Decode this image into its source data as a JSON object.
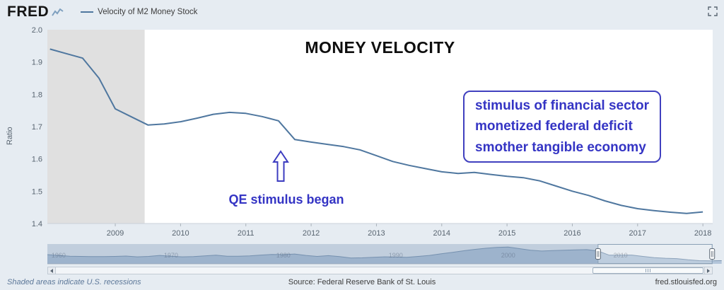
{
  "header": {
    "logo": "FRED",
    "series_legend": "Velocity of M2 Money Stock"
  },
  "chart_data": {
    "type": "line",
    "title": "MONEY VELOCITY",
    "ylabel": "Ratio",
    "series_name": "Velocity of M2 Money Stock",
    "x_start": 2008.0,
    "x_step": 0.25,
    "values": [
      1.94,
      1.926,
      1.912,
      1.85,
      1.755,
      1.73,
      1.705,
      1.708,
      1.715,
      1.726,
      1.738,
      1.744,
      1.741,
      1.731,
      1.718,
      1.66,
      1.652,
      1.645,
      1.638,
      1.628,
      1.61,
      1.592,
      1.58,
      1.57,
      1.56,
      1.555,
      1.558,
      1.552,
      1.546,
      1.542,
      1.532,
      1.516,
      1.5,
      1.487,
      1.47,
      1.456,
      1.446,
      1.44,
      1.435,
      1.431,
      1.436
    ],
    "xlim": [
      2007.96,
      2018.15
    ],
    "ylim": [
      1.4,
      2.0
    ],
    "y_ticks": [
      2.0,
      1.9,
      1.8,
      1.7,
      1.6,
      1.5,
      1.4
    ],
    "x_ticks": [
      2009,
      2010,
      2011,
      2012,
      2013,
      2014,
      2015,
      2016,
      2017,
      2018
    ],
    "line_color": "#4f779f",
    "recession_bands": [
      {
        "start": 2007.96,
        "end": 2009.45,
        "color": "#e0e0e0"
      }
    ],
    "grid": false,
    "legend_position": "header"
  },
  "annotations": {
    "box_lines": [
      "stimulus of financial sector",
      "monetized federal deficit",
      "smother tangible economy"
    ],
    "arrow_label": "QE stimulus began",
    "color": "#3434c4"
  },
  "navigator": {
    "x_start": 1959,
    "x_step": 1,
    "values": [
      1.74,
      1.7,
      1.66,
      1.65,
      1.64,
      1.64,
      1.65,
      1.67,
      1.63,
      1.65,
      1.7,
      1.66,
      1.63,
      1.64,
      1.68,
      1.71,
      1.66,
      1.66,
      1.68,
      1.72,
      1.75,
      1.74,
      1.77,
      1.7,
      1.65,
      1.69,
      1.64,
      1.57,
      1.58,
      1.61,
      1.63,
      1.62,
      1.61,
      1.65,
      1.7,
      1.78,
      1.85,
      1.93,
      2.0,
      2.06,
      2.1,
      2.12,
      2.04,
      1.96,
      1.92,
      1.94,
      1.96,
      1.98,
      1.99,
      1.92,
      1.71,
      1.72,
      1.72,
      1.65,
      1.59,
      1.56,
      1.54,
      1.48,
      1.44,
      1.43,
      1.44
    ],
    "xlim": [
      1959,
      2018.2
    ],
    "ylim": [
      1.35,
      2.2
    ],
    "decade_labels": [
      "1960",
      "1970",
      "1980",
      "1990",
      "2000",
      "2010"
    ],
    "window": [
      2008.0,
      2018.15
    ],
    "area_fill": "#b4c6da",
    "area_stroke": "#7e97b2",
    "mask_fill": "rgba(96,128,168,0.28)"
  },
  "footer": {
    "recession_note": "Shaded areas indicate U.S. recessions",
    "source": "Source: Federal Reserve Bank of St. Louis",
    "site": "fred.stlouisfed.org"
  }
}
